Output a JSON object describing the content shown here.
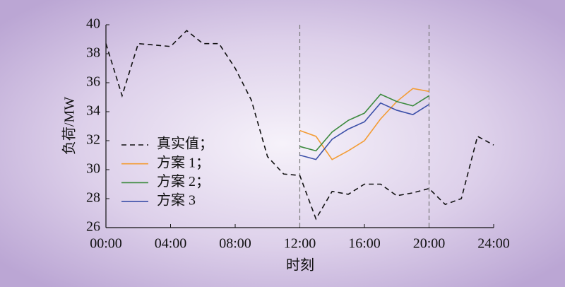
{
  "chart_data": {
    "type": "line",
    "x_label": "时刻",
    "y_label": "负荷/MW",
    "x": [
      0,
      1,
      2,
      3,
      4,
      5,
      6,
      7,
      8,
      9,
      10,
      11,
      12,
      13,
      14,
      15,
      16,
      17,
      18,
      19,
      20,
      21,
      22,
      23,
      24
    ],
    "series": [
      {
        "name": "真实值；",
        "color": "#111111",
        "dash": true,
        "values": [
          38.7,
          35.1,
          38.7,
          38.6,
          38.5,
          39.6,
          38.7,
          38.7,
          37.0,
          34.8,
          30.9,
          29.7,
          29.6,
          26.6,
          28.5,
          28.3,
          29.0,
          29.0,
          28.2,
          28.4,
          28.7,
          27.6,
          28.0,
          32.3,
          31.7
        ]
      },
      {
        "name": "方案 1；",
        "color": "#f39c34",
        "values": [
          null,
          null,
          null,
          null,
          null,
          null,
          null,
          null,
          null,
          null,
          null,
          null,
          32.7,
          32.3,
          30.7,
          31.3,
          32.0,
          33.5,
          34.7,
          35.6,
          35.4,
          null,
          null,
          null,
          null
        ]
      },
      {
        "name": "方案 2；",
        "color": "#3c8a3e",
        "values": [
          null,
          null,
          null,
          null,
          null,
          null,
          null,
          null,
          null,
          null,
          null,
          null,
          31.6,
          31.3,
          32.6,
          33.4,
          33.9,
          35.2,
          34.7,
          34.4,
          35.1,
          null,
          null,
          null,
          null
        ]
      },
      {
        "name": "方案 3",
        "color": "#3b4fa8",
        "values": [
          null,
          null,
          null,
          null,
          null,
          null,
          null,
          null,
          null,
          null,
          null,
          null,
          31.0,
          30.7,
          32.1,
          32.8,
          33.3,
          34.6,
          34.1,
          33.8,
          34.5,
          null,
          null,
          null,
          null
        ]
      }
    ],
    "vlines": [
      12,
      20
    ],
    "xlim": [
      0,
      24
    ],
    "xticks": [
      {
        "value": 0,
        "label": "00:00"
      },
      {
        "value": 4,
        "label": "04:00"
      },
      {
        "value": 8,
        "label": "08:00"
      },
      {
        "value": 12,
        "label": "12:00"
      },
      {
        "value": 16,
        "label": "16:00"
      },
      {
        "value": 20,
        "label": "20:00"
      },
      {
        "value": 24,
        "label": "24:00"
      }
    ],
    "ylim": [
      26,
      40
    ],
    "yticks": [
      26,
      28,
      30,
      32,
      34,
      36,
      38,
      40
    ],
    "legend": "left"
  }
}
